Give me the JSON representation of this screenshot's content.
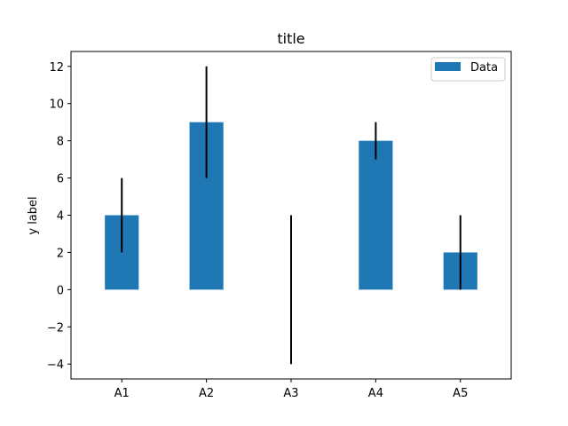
{
  "chart_data": {
    "type": "bar",
    "title": "title",
    "xlabel": "",
    "ylabel": "y label",
    "categories": [
      "A1",
      "A2",
      "A3",
      "A4",
      "A5"
    ],
    "series": [
      {
        "name": "Data",
        "values": [
          4,
          9,
          0,
          8,
          2
        ],
        "err_low": [
          2,
          6,
          -4,
          7,
          0
        ],
        "err_high": [
          6,
          12,
          4,
          9,
          4
        ],
        "color": "#1f77b4"
      }
    ],
    "errorbar_color": "#000000",
    "ylim": [
      -4.8,
      12.8
    ],
    "yticks": [
      -4,
      -2,
      0,
      2,
      4,
      6,
      8,
      10,
      12
    ],
    "ytick_labels": [
      "−4",
      "−2",
      "0",
      "2",
      "4",
      "6",
      "8",
      "10",
      "12"
    ],
    "grid": false,
    "legend": "top-right"
  }
}
